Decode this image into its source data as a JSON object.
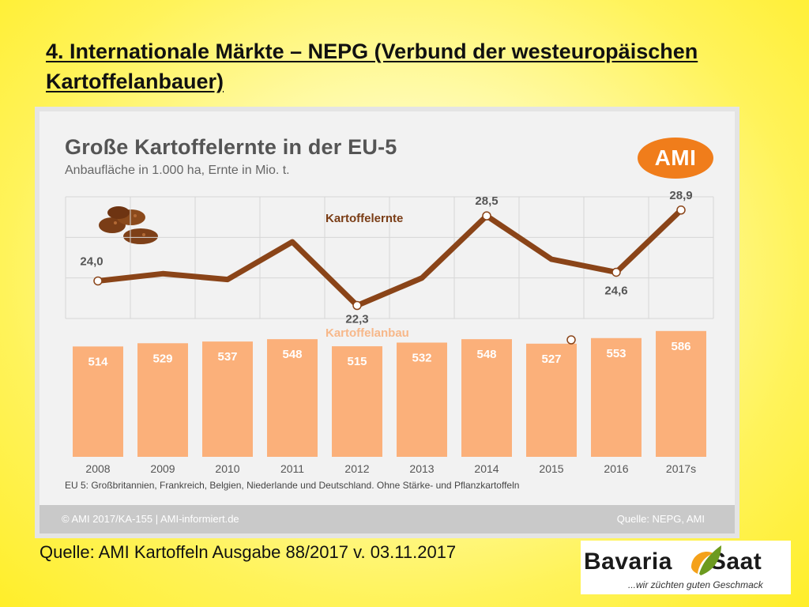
{
  "slide": {
    "title": "4. Internationale Märkte – NEPG (Verbund der westeuropäischen Kartoffelanbauer)",
    "source": "Quelle: AMI Kartoffeln Ausgabe 88/2017 v. 03.11.2017"
  },
  "chart_data": {
    "type": "bar",
    "title": "Große Kartoffelernte in der EU-5",
    "subtitle": "Anbaufläche in 1.000 ha, Ernte in Mio. t.",
    "categories": [
      "2008",
      "2009",
      "2010",
      "2011",
      "2012",
      "2013",
      "2014",
      "2015",
      "2016",
      "2017s"
    ],
    "series": [
      {
        "name": "Kartoffelanbau",
        "type": "bar",
        "values": [
          514,
          529,
          537,
          548,
          515,
          532,
          548,
          527,
          553,
          586
        ],
        "color": "#fbb07a"
      },
      {
        "name": "Kartoffelernte",
        "type": "line",
        "values": [
          24.0,
          24.5,
          24.1,
          26.7,
          22.3,
          24.2,
          28.5,
          25.5,
          24.6,
          28.9
        ],
        "labeled": [
          "24,0",
          null,
          null,
          null,
          "22,3",
          null,
          "28,5",
          null,
          "24,6",
          "28,9"
        ],
        "color": "#8a4418"
      }
    ],
    "grid": true,
    "footnote": "EU 5: Großbritannien, Frankreich, Belgien, Niederlande und Deutschland. Ohne Stärke- und Pflanzkartoffeln",
    "copyright": "© AMI 2017/KA-155 | AMI-informiert.de",
    "data_source": "Quelle: NEPG, AMI",
    "logo_text": "AMI"
  },
  "branding": {
    "name_left": "Bavaria",
    "name_right": "Saat",
    "tagline": "...wir züchten guten Geschmack",
    "colors": {
      "orange": "#f4a11a",
      "green": "#6c9a1f"
    }
  }
}
